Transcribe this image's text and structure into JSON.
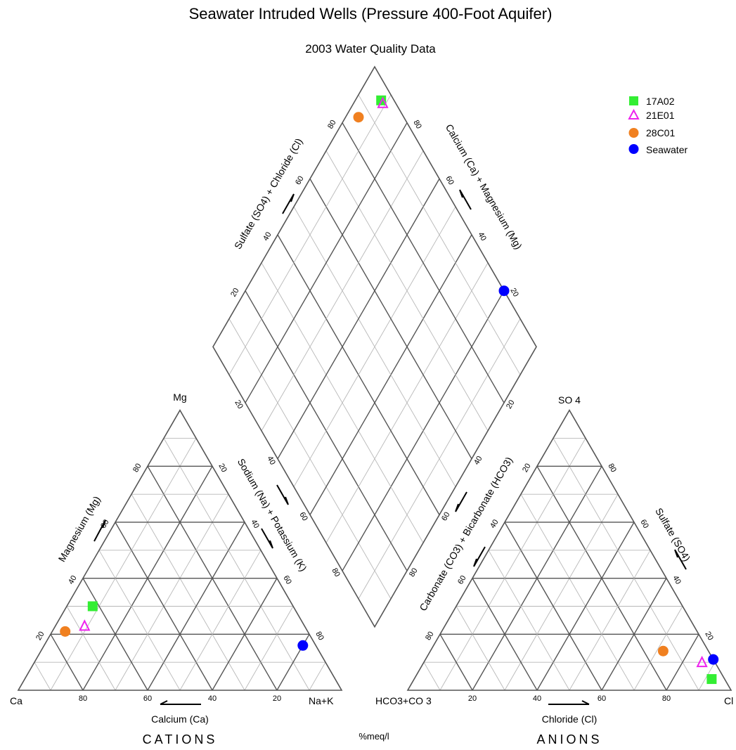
{
  "chart_data": {
    "type": "scatter",
    "title": "Seawater Intruded Wells (Pressure 400-Foot Aquifer)",
    "subtitle": "2003 Water Quality Data",
    "unit_label": "%meq/l",
    "ticks": [
      "20",
      "40",
      "60",
      "80"
    ],
    "cation_triangle": {
      "group_label": "CATIONS",
      "corners": {
        "left": "Ca",
        "top": "Mg",
        "right": "Na+K"
      },
      "axes": {
        "bottom": "Calcium (Ca)",
        "left": "Magnesium (Mg)",
        "right": "Sodium (Na) + Potassium (K)"
      }
    },
    "anion_triangle": {
      "group_label": "ANIONS",
      "corners": {
        "left": "HCO3+CO 3",
        "top": "SO 4",
        "right": "Cl"
      },
      "axes": {
        "bottom": "Chloride (Cl)",
        "left": "Carbonate (CO3) + Bicarbonate (HCO3)",
        "right": "Sulfate (SO4)"
      }
    },
    "diamond": {
      "axes": {
        "upper_left": "Sulfate (SO4) + Chloride (Cl)",
        "upper_right": "Calcium (Ca) + Magnesium (Mg)"
      }
    },
    "series": [
      {
        "name": "17A02",
        "marker": "square",
        "color": "#33ee33",
        "cations": {
          "ca": 62,
          "mg": 30,
          "nak": 8
        },
        "anions": {
          "cl": 92,
          "so4": 4,
          "hco3": 4
        },
        "diamond": {
          "so4cl": 96,
          "camg": 92
        }
      },
      {
        "name": "21E01",
        "marker": "triangle-open",
        "color": "#ee22ee",
        "cations": {
          "ca": 68,
          "mg": 23,
          "nak": 9
        },
        "anions": {
          "cl": 86,
          "so4": 10,
          "hco3": 4
        },
        "diamond": {
          "so4cl": 96,
          "camg": 91
        }
      },
      {
        "name": "28C01",
        "marker": "circle",
        "color": "#f08020",
        "cations": {
          "ca": 75,
          "mg": 21,
          "nak": 4
        },
        "anions": {
          "cl": 72,
          "so4": 14,
          "hco3": 14
        },
        "diamond": {
          "so4cl": 86,
          "camg": 96
        }
      },
      {
        "name": "Seawater",
        "marker": "circle",
        "color": "#0000ff",
        "cations": {
          "ca": 4,
          "mg": 16,
          "nak": 80
        },
        "anions": {
          "cl": 89,
          "so4": 11,
          "hco3": 0
        },
        "diamond": {
          "so4cl": 100,
          "camg": 20
        }
      }
    ]
  }
}
